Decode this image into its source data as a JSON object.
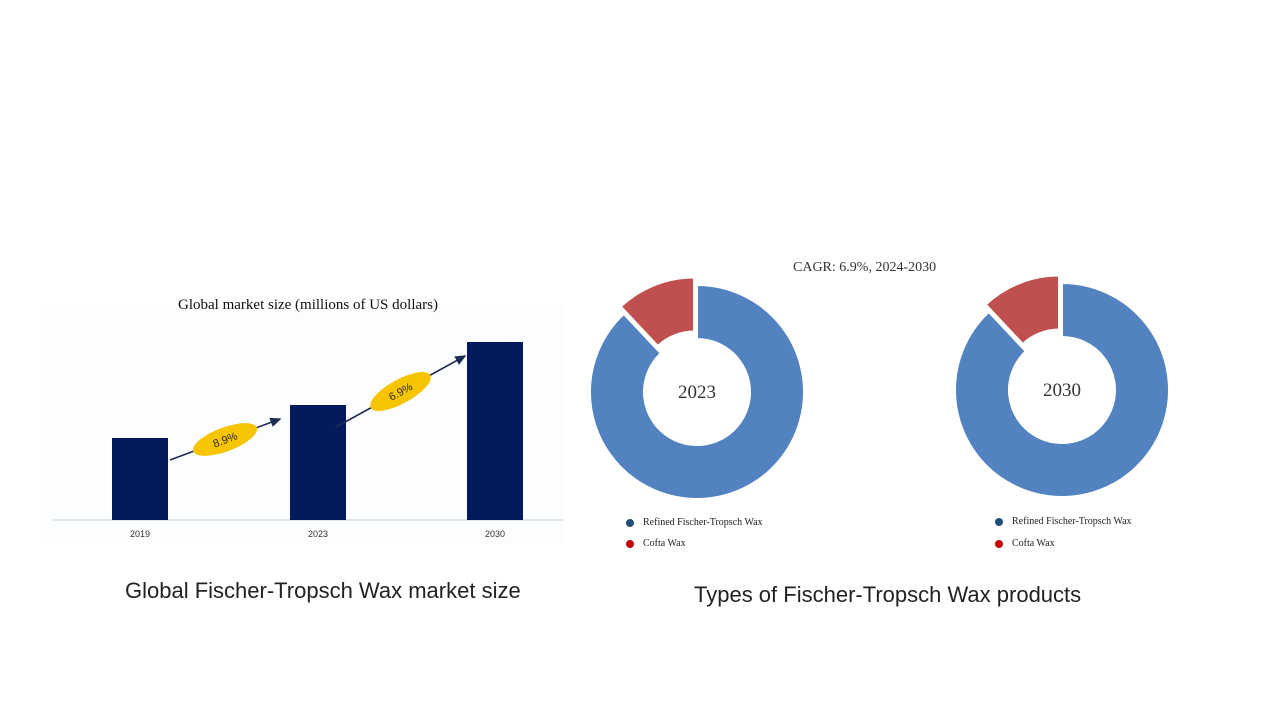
{
  "chart_data": [
    {
      "type": "bar",
      "title": "Global market size (millions of US dollars)",
      "categories": [
        "2019",
        "2023",
        "2030"
      ],
      "values": [
        82,
        115,
        178
      ],
      "ylim": [
        0,
        200
      ],
      "color": "#041a5c",
      "growth_labels": [
        "8.9%",
        "6.9%"
      ],
      "grid": false
    },
    {
      "type": "pie",
      "center_label": "2023",
      "labels": [
        "Refined Fischer-Tropsch Wax",
        "Cofta  Wax"
      ],
      "values": [
        88,
        12
      ],
      "colors": [
        "#5282bf",
        "#c0504f"
      ]
    },
    {
      "type": "pie",
      "center_label": "2030",
      "labels": [
        "Refined Fischer-Tropsch Wax",
        "Cofta  Wax"
      ],
      "values": [
        88,
        12
      ],
      "colors": [
        "#5282bf",
        "#c0504f"
      ]
    }
  ],
  "cagr_title": "CAGR: 6.9%, 2024-2030",
  "captions": {
    "left": "Global Fischer-Tropsch Wax market size",
    "right": "Types of Fischer-Tropsch Wax products"
  },
  "legend_colors": {
    "refined": "#1f4e79",
    "cofta": "#c00000"
  },
  "arrow_color": "#1d2b4f",
  "badge_color": "#f7c400"
}
